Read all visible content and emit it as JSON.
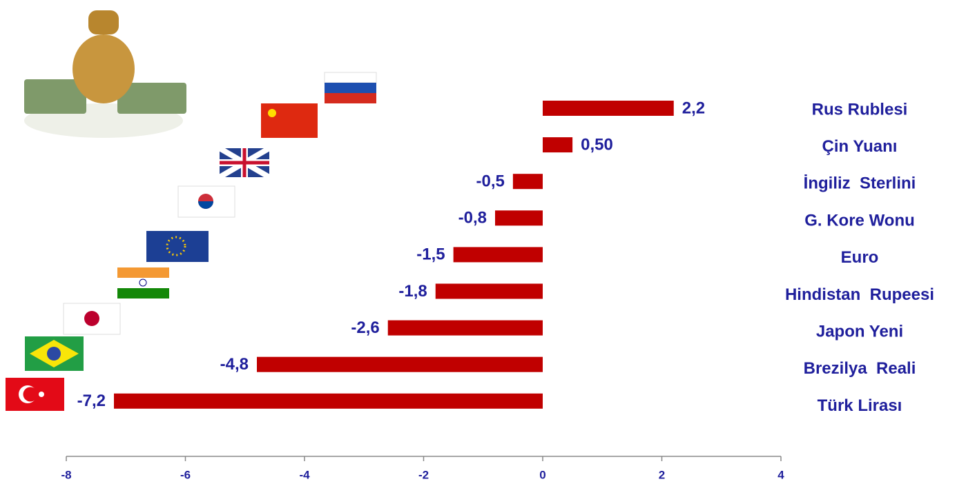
{
  "chart_data": {
    "type": "hbar",
    "categories": [
      "Rus Rublesi",
      "Çin Yuanı",
      "İngiliz  Sterlini",
      "G. Kore Wonu",
      "Euro",
      "Hindistan  Rupeesi",
      "Japon Yeni",
      "Brezilya  Reali",
      "Türk Lirası"
    ],
    "values": [
      2.2,
      0.5,
      -0.5,
      -0.8,
      -1.5,
      -1.8,
      -2.6,
      -4.8,
      -7.2
    ],
    "value_labels": [
      "2,2",
      "0,50",
      "-0,5",
      "-0,8",
      "-1,5",
      "-1,8",
      "-2,6",
      "-4,8",
      "-7,2"
    ],
    "color": "#c00000",
    "xlim": [
      -8,
      4
    ],
    "xticks": [
      -8,
      -6,
      -4,
      -2,
      0,
      2,
      4
    ]
  }
}
